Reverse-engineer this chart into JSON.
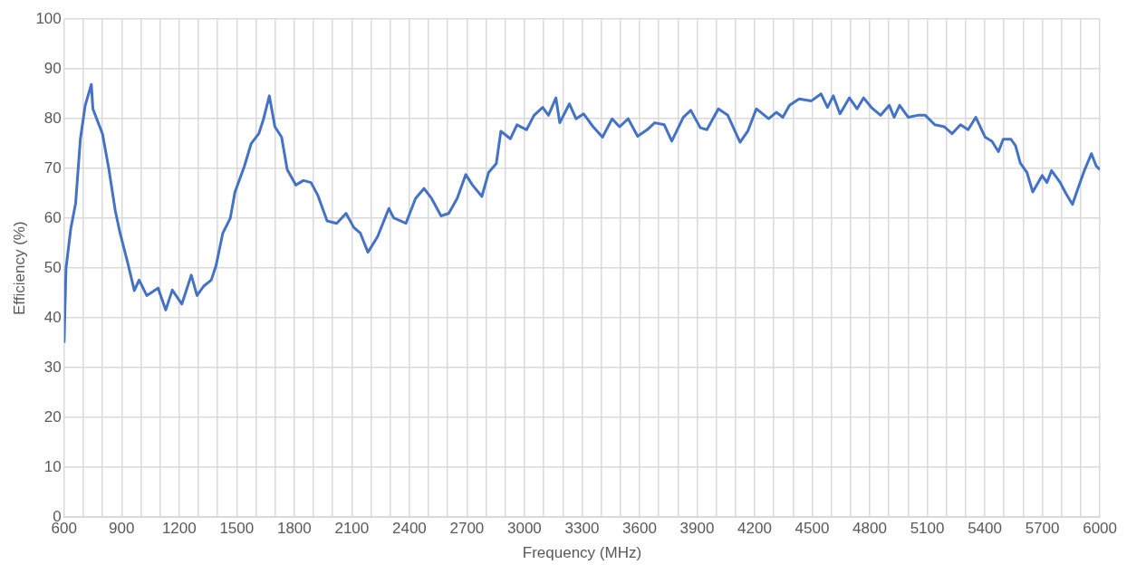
{
  "chart_data": {
    "type": "line",
    "xlabel": "Frequency (MHz)",
    "ylabel": "Efficiency (%)",
    "xlim": [
      600,
      6000
    ],
    "ylim": [
      0,
      100
    ],
    "xticks": [
      600,
      {
        "value": 700,
        "label": null
      },
      {
        "value": 800,
        "label": null
      },
      900,
      {
        "value": 1000,
        "label": null
      },
      {
        "value": 1100,
        "label": null
      },
      1200,
      {
        "value": 1300,
        "label": null
      },
      {
        "value": 1400,
        "label": null
      },
      1500,
      {
        "value": 1600,
        "label": null
      },
      {
        "value": 1700,
        "label": null
      },
      1800,
      {
        "value": 1900,
        "label": null
      },
      {
        "value": 2000,
        "label": null
      },
      2100,
      {
        "value": 2200,
        "label": null
      },
      {
        "value": 2300,
        "label": null
      },
      2400,
      {
        "value": 2500,
        "label": null
      },
      {
        "value": 2600,
        "label": null
      },
      2700,
      {
        "value": 2800,
        "label": null
      },
      {
        "value": 2900,
        "label": null
      },
      3000,
      {
        "value": 3100,
        "label": null
      },
      {
        "value": 3200,
        "label": null
      },
      3300,
      {
        "value": 3400,
        "label": null
      },
      {
        "value": 3500,
        "label": null
      },
      3600,
      {
        "value": 3700,
        "label": null
      },
      {
        "value": 3800,
        "label": null
      },
      3900,
      {
        "value": 4000,
        "label": null
      },
      {
        "value": 4100,
        "label": null
      },
      4200,
      {
        "value": 4300,
        "label": null
      },
      {
        "value": 4400,
        "label": null
      },
      4500,
      {
        "value": 4600,
        "label": null
      },
      {
        "value": 4700,
        "label": null
      },
      4800,
      {
        "value": 4900,
        "label": null
      },
      {
        "value": 5000,
        "label": null
      },
      5100,
      {
        "value": 5200,
        "label": null
      },
      {
        "value": 5300,
        "label": null
      },
      5400,
      {
        "value": 5500,
        "label": null
      },
      {
        "value": 5600,
        "label": null
      },
      5700,
      {
        "value": 5800,
        "label": null
      },
      {
        "value": 5900,
        "label": null
      },
      6000
    ],
    "yticks": [
      0,
      10,
      20,
      30,
      40,
      50,
      60,
      70,
      80,
      90,
      100
    ],
    "grid": true,
    "legend": false,
    "marker": "none",
    "line_style": "solid",
    "series": [
      {
        "color": "#4472c4",
        "x": [
          600,
          610,
          635,
          660,
          685,
          710,
          742,
          750,
          800,
          833,
          867,
          892,
          932,
          966,
          991,
          1031,
          1090,
          1130,
          1164,
          1214,
          1263,
          1293,
          1328,
          1367,
          1392,
          1427,
          1466,
          1491,
          1540,
          1575,
          1615,
          1640,
          1670,
          1699,
          1734,
          1763,
          1808,
          1848,
          1887,
          1922,
          1971,
          2021,
          2070,
          2110,
          2145,
          2184,
          2234,
          2293,
          2318,
          2382,
          2432,
          2476,
          2516,
          2565,
          2605,
          2649,
          2694,
          2729,
          2778,
          2813,
          2853,
          2877,
          2927,
          2961,
          3011,
          3050,
          3095,
          3125,
          3164,
          3184,
          3234,
          3269,
          3308,
          3358,
          3407,
          3457,
          3496,
          3541,
          3590,
          3640,
          3679,
          3729,
          3768,
          3828,
          3867,
          3917,
          3951,
          4011,
          4060,
          4124,
          4164,
          4209,
          4273,
          4313,
          4347,
          4382,
          4432,
          4496,
          4546,
          4580,
          4610,
          4645,
          4694,
          4734,
          4768,
          4808,
          4857,
          4902,
          4927,
          4956,
          5001,
          5050,
          5090,
          5139,
          5189,
          5229,
          5273,
          5313,
          5353,
          5402,
          5437,
          5471,
          5496,
          5536,
          5560,
          5585,
          5620,
          5650,
          5699,
          5724,
          5748,
          5793,
          5823,
          5857,
          5892,
          5921,
          5956,
          5981,
          6000
        ],
        "values": [
          35,
          50,
          58,
          63,
          76,
          82.7,
          86.9,
          82,
          77,
          70,
          61.5,
          57,
          51,
          45.5,
          47.6,
          44.5,
          46,
          41.6,
          45.6,
          42.8,
          48.6,
          44.5,
          46.4,
          47.6,
          50.5,
          57,
          60,
          65.3,
          70.5,
          75,
          77,
          80,
          84.6,
          78.4,
          76.3,
          69.8,
          66.7,
          67.6,
          67.2,
          64.7,
          59.5,
          59,
          61,
          58.2,
          57,
          53.2,
          56.3,
          62,
          60.1,
          59,
          64,
          66,
          64,
          60.5,
          61,
          64,
          68.8,
          66.7,
          64.4,
          69.2,
          71,
          77.5,
          76,
          78.8,
          77.8,
          80.7,
          82.3,
          80.7,
          84.2,
          79.2,
          83,
          80,
          81,
          78.4,
          76.3,
          80,
          78.4,
          80,
          76.5,
          77.8,
          79.2,
          78.8,
          75.5,
          80.3,
          81.7,
          78.2,
          77.8,
          82,
          80.7,
          75.3,
          77.5,
          82,
          80,
          81.3,
          80.3,
          82.7,
          84,
          83.6,
          85,
          82.3,
          84.6,
          81,
          84.2,
          82,
          84.2,
          82.3,
          80.7,
          82.7,
          80.3,
          82.7,
          80.3,
          80.7,
          80.7,
          78.8,
          78.4,
          77,
          78.8,
          77.8,
          80.3,
          76.3,
          75.5,
          73.4,
          75.9,
          75.9,
          74.6,
          71.1,
          69.2,
          65.3,
          68.6,
          67.2,
          69.6,
          67.2,
          65,
          62.8,
          66.7,
          69.8,
          73,
          70.5,
          69.8
        ]
      }
    ]
  }
}
